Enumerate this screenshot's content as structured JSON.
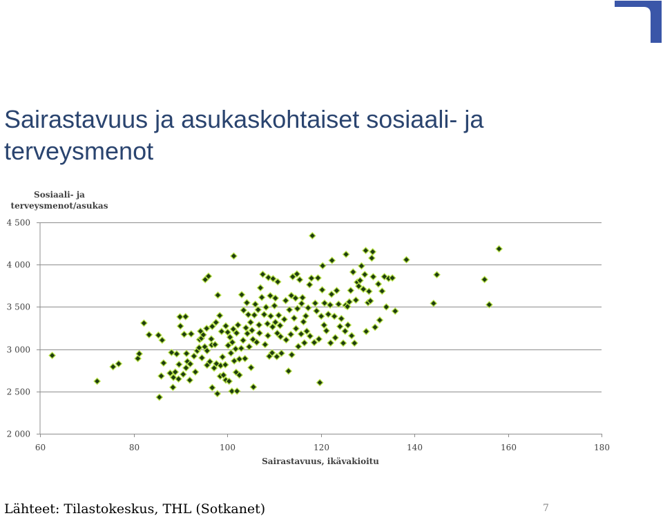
{
  "slide": {
    "title": "Sairastavuus ja asukaskohtaiset sosiaali- ja terveysmenot",
    "source": "Lähteet: Tilastokeskus, THL (Sotkanet)",
    "page_number": "7",
    "logo_color": "#3a56a8"
  },
  "chart_data": {
    "type": "scatter",
    "title": "",
    "xlabel": "Sairastavuus, ikävakioitu",
    "ylabel_lines": [
      "Sosiaali- ja",
      "terveysmenot/asukas"
    ],
    "xlim": [
      60,
      180
    ],
    "ylim": [
      2000,
      4500
    ],
    "x_ticks": [
      60,
      80,
      100,
      120,
      140,
      160,
      180
    ],
    "y_ticks": [
      2000,
      2500,
      3000,
      3500,
      4000,
      4500
    ],
    "x_tick_labels": [
      "60",
      "80",
      "100",
      "120",
      "140",
      "160",
      "180"
    ],
    "y_tick_labels": [
      "2 000",
      "2 500",
      "3 000",
      "3 500",
      "4 000",
      "4 500"
    ],
    "grid": "horizontal",
    "marker": "diamond",
    "marker_fill": "#1f3d10",
    "marker_edge": "#b9e34a",
    "points": [
      [
        62.6,
        2926
      ],
      [
        72.2,
        2621
      ],
      [
        75.6,
        2792
      ],
      [
        76.8,
        2828
      ],
      [
        80.9,
        2890
      ],
      [
        81.2,
        2946
      ],
      [
        82.2,
        3309
      ],
      [
        83.3,
        3171
      ],
      [
        85.3,
        3166
      ],
      [
        85.5,
        2432
      ],
      [
        85.9,
        2683
      ],
      [
        86.1,
        3107
      ],
      [
        86.4,
        2837
      ],
      [
        87.8,
        2717
      ],
      [
        88.1,
        2961
      ],
      [
        88.4,
        2549
      ],
      [
        88.5,
        2666
      ],
      [
        88.9,
        2730
      ],
      [
        89.2,
        2944
      ],
      [
        89.6,
        2648
      ],
      [
        89.7,
        2820
      ],
      [
        89.9,
        3383
      ],
      [
        90.0,
        3273
      ],
      [
        90.6,
        2703
      ],
      [
        90.8,
        3176
      ],
      [
        91.1,
        3385
      ],
      [
        91.2,
        2779
      ],
      [
        91.3,
        2949
      ],
      [
        91.5,
        2854
      ],
      [
        92.0,
        2634
      ],
      [
        92.1,
        2826
      ],
      [
        92.3,
        3181
      ],
      [
        92.9,
        2918
      ],
      [
        93.2,
        2731
      ],
      [
        93.6,
        2981
      ],
      [
        94.0,
        3017
      ],
      [
        94.1,
        3114
      ],
      [
        94.3,
        3213
      ],
      [
        94.5,
        3130
      ],
      [
        94.6,
        2898
      ],
      [
        94.9,
        3170
      ],
      [
        95.2,
        3029
      ],
      [
        95.3,
        3823
      ],
      [
        95.6,
        3246
      ],
      [
        95.7,
        2982
      ],
      [
        95.7,
        2811
      ],
      [
        96.0,
        3863
      ],
      [
        96.3,
        2853
      ],
      [
        96.6,
        3121
      ],
      [
        96.7,
        3049
      ],
      [
        96.8,
        2545
      ],
      [
        96.8,
        3269
      ],
      [
        97.2,
        2777
      ],
      [
        97.4,
        3055
      ],
      [
        97.6,
        3317
      ],
      [
        97.7,
        2829
      ],
      [
        97.9,
        2474
      ],
      [
        98.0,
        3639
      ],
      [
        98.4,
        3398
      ],
      [
        98.5,
        2680
      ],
      [
        98.6,
        2806
      ],
      [
        98.8,
        3210
      ],
      [
        99.0,
        2908
      ],
      [
        99.2,
        2694
      ],
      [
        99.6,
        2816
      ],
      [
        99.7,
        3275
      ],
      [
        99.7,
        2635
      ],
      [
        100.1,
        3201
      ],
      [
        100.2,
        3044
      ],
      [
        100.4,
        2621
      ],
      [
        100.6,
        3142
      ],
      [
        100.8,
        2954
      ],
      [
        101.0,
        2503
      ],
      [
        101.1,
        3082
      ],
      [
        101.3,
        3238
      ],
      [
        101.4,
        4102
      ],
      [
        101.5,
        2861
      ],
      [
        101.8,
        3004
      ],
      [
        101.9,
        2727
      ],
      [
        102.0,
        3191
      ],
      [
        102.1,
        2504
      ],
      [
        102.3,
        3286
      ],
      [
        102.6,
        2694
      ],
      [
        102.6,
        2883
      ],
      [
        103.0,
        3010
      ],
      [
        103.1,
        3645
      ],
      [
        103.4,
        3105
      ],
      [
        103.5,
        3461
      ],
      [
        103.8,
        2889
      ],
      [
        104.0,
        3253
      ],
      [
        104.2,
        3550
      ],
      [
        104.3,
        3185
      ],
      [
        104.5,
        3409
      ],
      [
        104.7,
        3029
      ],
      [
        105.0,
        3318
      ],
      [
        105.1,
        2783
      ],
      [
        105.3,
        3223
      ],
      [
        105.5,
        3116
      ],
      [
        105.6,
        2553
      ],
      [
        105.8,
        3404
      ],
      [
        106.0,
        3532
      ],
      [
        106.3,
        3082
      ],
      [
        106.6,
        3467
      ],
      [
        106.8,
        3287
      ],
      [
        106.9,
        3190
      ],
      [
        107.1,
        3726
      ],
      [
        107.4,
        3613
      ],
      [
        107.6,
        3886
      ],
      [
        107.9,
        3411
      ],
      [
        108.1,
        3055
      ],
      [
        108.3,
        3496
      ],
      [
        108.6,
        3301
      ],
      [
        108.7,
        3160
      ],
      [
        108.8,
        3848
      ],
      [
        109.0,
        2916
      ],
      [
        109.2,
        3633
      ],
      [
        109.3,
        3392
      ],
      [
        109.6,
        2957
      ],
      [
        109.7,
        3264
      ],
      [
        109.8,
        3834
      ],
      [
        110.1,
        3514
      ],
      [
        110.3,
        3319
      ],
      [
        110.3,
        3604
      ],
      [
        110.6,
        2912
      ],
      [
        110.7,
        3189
      ],
      [
        110.8,
        3797
      ],
      [
        111.0,
        3401
      ],
      [
        111.3,
        3280
      ],
      [
        111.4,
        3149
      ],
      [
        111.6,
        2952
      ],
      [
        112.2,
        3353
      ],
      [
        112.5,
        3575
      ],
      [
        112.6,
        3110
      ],
      [
        113.1,
        2741
      ],
      [
        113.3,
        3466
      ],
      [
        113.6,
        3175
      ],
      [
        113.7,
        3635
      ],
      [
        113.8,
        2934
      ],
      [
        114.0,
        3857
      ],
      [
        114.3,
        3368
      ],
      [
        114.6,
        3604
      ],
      [
        114.7,
        3244
      ],
      [
        114.9,
        3890
      ],
      [
        115.0,
        3480
      ],
      [
        115.2,
        3032
      ],
      [
        115.5,
        3822
      ],
      [
        115.8,
        3180
      ],
      [
        115.9,
        3540
      ],
      [
        116.1,
        3610
      ],
      [
        116.3,
        3324
      ],
      [
        116.5,
        3075
      ],
      [
        116.8,
        3393
      ],
      [
        117.0,
        3213
      ],
      [
        117.3,
        3489
      ],
      [
        117.6,
        3763
      ],
      [
        117.7,
        3155
      ],
      [
        118.0,
        3840
      ],
      [
        118.2,
        4342
      ],
      [
        118.6,
        3079
      ],
      [
        118.8,
        3544
      ],
      [
        119.1,
        3453
      ],
      [
        119.4,
        3843
      ],
      [
        119.6,
        3120
      ],
      [
        119.8,
        2605
      ],
      [
        120.1,
        3390
      ],
      [
        120.3,
        3702
      ],
      [
        120.4,
        3987
      ],
      [
        120.7,
        3285
      ],
      [
        120.8,
        3545
      ],
      [
        121.2,
        3218
      ],
      [
        121.6,
        3413
      ],
      [
        122.0,
        3523
      ],
      [
        122.1,
        3074
      ],
      [
        122.3,
        3650
      ],
      [
        122.4,
        4050
      ],
      [
        122.9,
        3389
      ],
      [
        123.1,
        3136
      ],
      [
        123.4,
        3694
      ],
      [
        123.8,
        3533
      ],
      [
        124.1,
        3269
      ],
      [
        124.4,
        3362
      ],
      [
        124.8,
        3072
      ],
      [
        125.2,
        3214
      ],
      [
        125.3,
        3518
      ],
      [
        125.4,
        4122
      ],
      [
        125.7,
        3504
      ],
      [
        125.8,
        3285
      ],
      [
        126.1,
        3560
      ],
      [
        126.4,
        3695
      ],
      [
        126.6,
        3159
      ],
      [
        126.9,
        3913
      ],
      [
        127.2,
        3072
      ],
      [
        127.5,
        3581
      ],
      [
        127.8,
        3793
      ],
      [
        128.1,
        3746
      ],
      [
        128.4,
        3813
      ],
      [
        128.7,
        3985
      ],
      [
        129.1,
        3710
      ],
      [
        129.4,
        3884
      ],
      [
        129.6,
        4167
      ],
      [
        129.7,
        3210
      ],
      [
        130.1,
        3551
      ],
      [
        130.3,
        3684
      ],
      [
        130.6,
        3571
      ],
      [
        130.9,
        4078
      ],
      [
        131.1,
        4152
      ],
      [
        131.2,
        3857
      ],
      [
        131.6,
        3260
      ],
      [
        132.3,
        3771
      ],
      [
        132.6,
        3344
      ],
      [
        133.1,
        3687
      ],
      [
        133.6,
        3858
      ],
      [
        134.0,
        3500
      ],
      [
        134.5,
        3837
      ],
      [
        135.3,
        3843
      ],
      [
        135.9,
        3451
      ],
      [
        138.3,
        4058
      ],
      [
        144.1,
        3542
      ],
      [
        144.8,
        3881
      ],
      [
        155.0,
        3824
      ],
      [
        156.0,
        3526
      ],
      [
        158.1,
        4187
      ]
    ]
  }
}
